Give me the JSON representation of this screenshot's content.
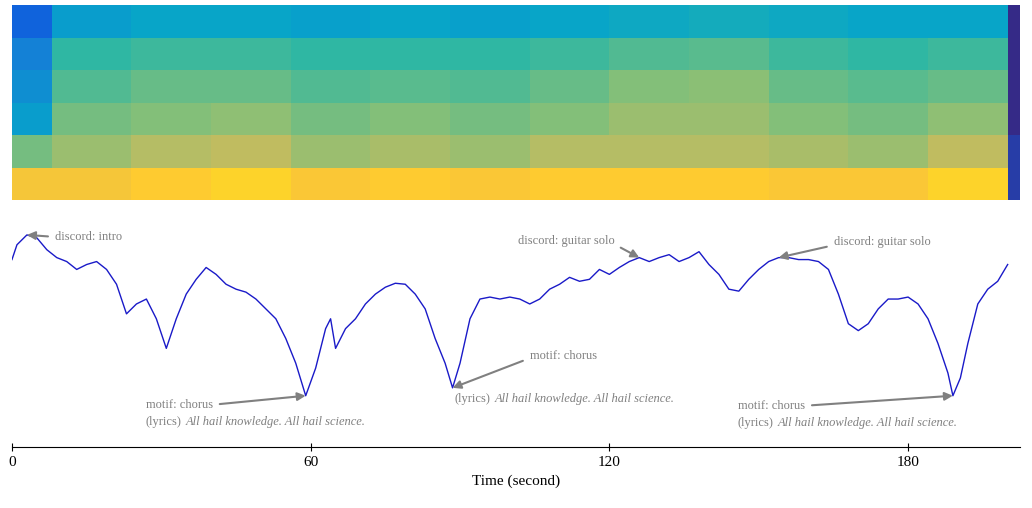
{
  "chart_data": {
    "type": "line",
    "xlabel": "Time (second)",
    "xlim": [
      0,
      202.4
    ],
    "xticks": [
      0,
      60,
      120,
      180
    ],
    "ylim": [
      -0.4,
      1.85
    ],
    "tick_labels": "x",
    "grid": false,
    "color": "#1a1ac8",
    "x": [
      0,
      1,
      3,
      5,
      7,
      9,
      11,
      13,
      15,
      17,
      19,
      21,
      23,
      25,
      27,
      29,
      31,
      33,
      35,
      37,
      39,
      41,
      43,
      45,
      47,
      49,
      51,
      53,
      55,
      57,
      59,
      61,
      63,
      64,
      65,
      67,
      69,
      71,
      73,
      75,
      77,
      79,
      81,
      83,
      85,
      87,
      88.5,
      90,
      92,
      94,
      96,
      98,
      100,
      102,
      104,
      106,
      108,
      110,
      112,
      114,
      116,
      118,
      120,
      122,
      124,
      126,
      128,
      130,
      132,
      134,
      136,
      138,
      140,
      142,
      144,
      146,
      148,
      150,
      152,
      154,
      156,
      158,
      160,
      162,
      164,
      166,
      168,
      170,
      172,
      174,
      176,
      178,
      180,
      182,
      184,
      186,
      188,
      189,
      190.5,
      192,
      194,
      196,
      198,
      200
    ],
    "values": [
      1.5,
      1.65,
      1.75,
      1.72,
      1.6,
      1.52,
      1.48,
      1.4,
      1.45,
      1.48,
      1.4,
      1.25,
      0.95,
      1.05,
      1.1,
      0.9,
      0.6,
      0.9,
      1.15,
      1.3,
      1.42,
      1.35,
      1.25,
      1.2,
      1.17,
      1.1,
      1.0,
      0.9,
      0.7,
      0.45,
      0.12,
      0.4,
      0.8,
      0.9,
      0.6,
      0.8,
      0.9,
      1.05,
      1.15,
      1.22,
      1.26,
      1.25,
      1.15,
      1.0,
      0.7,
      0.45,
      0.2,
      0.45,
      0.9,
      1.1,
      1.12,
      1.1,
      1.12,
      1.1,
      1.05,
      1.1,
      1.2,
      1.25,
      1.32,
      1.28,
      1.3,
      1.4,
      1.35,
      1.42,
      1.48,
      1.52,
      1.48,
      1.52,
      1.55,
      1.48,
      1.52,
      1.58,
      1.45,
      1.35,
      1.2,
      1.18,
      1.3,
      1.4,
      1.48,
      1.52,
      1.52,
      1.5,
      1.5,
      1.48,
      1.4,
      1.15,
      0.85,
      0.78,
      0.85,
      1.0,
      1.1,
      1.1,
      1.12,
      1.05,
      0.9,
      0.65,
      0.35,
      0.12,
      0.3,
      0.65,
      1.05,
      1.2,
      1.28,
      1.45
    ],
    "annotations": [
      {
        "text": "discord: intro",
        "x": 3,
        "y": 1.75
      },
      {
        "text": "discord: guitar solo",
        "x": 126,
        "y": 1.52
      },
      {
        "text": "discord: guitar solo",
        "x": 154,
        "y": 1.52
      },
      {
        "text": "motif: chorus",
        "lyrics_prefix": "(lyrics)",
        "lyrics": "All hail knowledge. All hail science.",
        "x": 59,
        "y": 0.12
      },
      {
        "text": "motif: chorus",
        "lyrics_prefix": "(lyrics)",
        "lyrics": "All hail knowledge. All hail science.",
        "x": 88.5,
        "y": 0.2
      },
      {
        "text": "motif: chorus",
        "lyrics_prefix": "(lyrics)",
        "lyrics": "All hail knowledge. All hail science.",
        "x": 189,
        "y": 0.12
      }
    ],
    "spectrogram": {
      "time_edges": [
        0,
        8,
        24,
        40,
        56,
        72,
        88,
        104,
        120,
        136,
        152,
        168,
        184,
        200,
        203
      ],
      "clim": [
        0,
        1
      ],
      "cells": [
        [
          0.15,
          0.35,
          0.38,
          0.38,
          0.36,
          0.38,
          0.36,
          0.38,
          0.4,
          0.42,
          0.4,
          0.38,
          0.38,
          0.0
        ],
        [
          0.25,
          0.5,
          0.52,
          0.52,
          0.5,
          0.5,
          0.5,
          0.52,
          0.55,
          0.56,
          0.52,
          0.5,
          0.52,
          0.0
        ],
        [
          0.3,
          0.55,
          0.58,
          0.58,
          0.55,
          0.56,
          0.55,
          0.58,
          0.62,
          0.63,
          0.58,
          0.56,
          0.58,
          0.0
        ],
        [
          0.35,
          0.6,
          0.62,
          0.64,
          0.6,
          0.62,
          0.6,
          0.62,
          0.66,
          0.66,
          0.62,
          0.6,
          0.64,
          0.0
        ],
        [
          0.6,
          0.66,
          0.7,
          0.72,
          0.66,
          0.68,
          0.66,
          0.7,
          0.7,
          0.7,
          0.68,
          0.66,
          0.72,
          0.05
        ],
        [
          0.85,
          0.85,
          0.88,
          0.9,
          0.86,
          0.88,
          0.86,
          0.88,
          0.88,
          0.88,
          0.86,
          0.86,
          0.9,
          0.05
        ]
      ]
    }
  }
}
